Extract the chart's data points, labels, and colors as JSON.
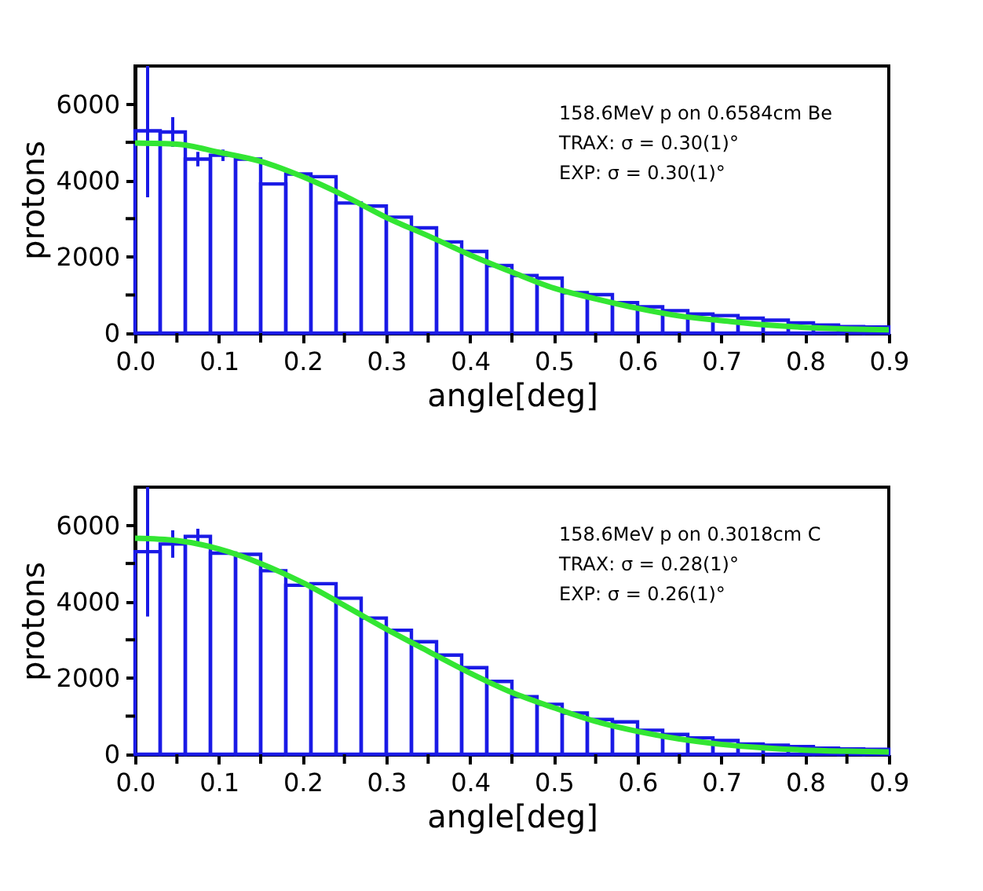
{
  "chart_data": [
    {
      "type": "histogram",
      "xlabel": "angle[deg]",
      "ylabel": "protons",
      "color": "#1a1ae6",
      "bins": [
        0,
        0.03,
        0.06,
        0.09,
        0.12,
        0.15,
        0.18,
        0.21,
        0.24,
        0.27,
        0.3,
        0.33,
        0.36,
        0.39,
        0.42,
        0.45,
        0.48,
        0.51,
        0.54,
        0.57,
        0.6,
        0.63,
        0.66,
        0.69,
        0.72,
        0.75,
        0.78,
        0.81,
        0.84,
        0.87,
        0.9
      ],
      "values": [
        5300,
        5270,
        4560,
        4660,
        4560,
        3910,
        4170,
        4100,
        3410,
        3330,
        3040,
        2760,
        2390,
        2140,
        1770,
        1510,
        1440,
        1060,
        1010,
        800,
        690,
        590,
        500,
        460,
        390,
        340,
        270,
        210,
        170,
        160
      ],
      "errors": [
        [
          3560,
          7000
        ],
        390,
        190,
        150,
        null,
        null,
        null,
        null,
        null,
        null,
        null,
        null,
        null,
        null,
        null,
        null,
        null,
        null,
        null,
        null,
        null,
        null,
        null,
        null,
        null,
        null,
        null,
        null,
        null,
        null
      ],
      "series": [
        {
          "type": "line",
          "color": "#33e633",
          "x": [
            0,
            0.05,
            0.1,
            0.15,
            0.2,
            0.25,
            0.3,
            0.35,
            0.4,
            0.45,
            0.5,
            0.55,
            0.6,
            0.65,
            0.7,
            0.75,
            0.8,
            0.85,
            0.9
          ],
          "values": [
            4980,
            4950,
            4740,
            4500,
            4100,
            3600,
            3030,
            2550,
            2050,
            1600,
            1180,
            900,
            650,
            450,
            330,
            220,
            150,
            110,
            90
          ]
        }
      ],
      "xlim": [
        0,
        0.9
      ],
      "ylim": [
        0,
        7000
      ],
      "xticks": [
        {
          "value": 0,
          "label": "0.0"
        },
        {
          "value": 0.05,
          "label": null
        },
        0.1,
        {
          "value": 0.15,
          "label": null
        },
        0.2,
        {
          "value": 0.25,
          "label": null
        },
        0.3,
        {
          "value": 0.35,
          "label": null
        },
        0.4,
        {
          "value": 0.45,
          "label": null
        },
        0.5,
        {
          "value": 0.55,
          "label": null
        },
        0.6,
        {
          "value": 0.65,
          "label": null
        },
        0.7,
        {
          "value": 0.75,
          "label": null
        },
        0.8,
        {
          "value": 0.85,
          "label": null
        },
        0.9
      ],
      "yticks": [
        0,
        {
          "value": 1000,
          "label": null
        },
        2000,
        {
          "value": 3000,
          "label": null
        },
        4000,
        {
          "value": 5000,
          "label": null
        },
        6000
      ],
      "annotations": [
        "158.6MeV p on 0.6584cm Be",
        "TRAX: σ = 0.30(1)°",
        "EXP: σ = 0.30(1)°"
      ],
      "grid": false
    },
    {
      "type": "histogram",
      "xlabel": "angle[deg]",
      "ylabel": "protons",
      "color": "#1a1ae6",
      "bins": [
        0,
        0.03,
        0.06,
        0.09,
        0.12,
        0.15,
        0.18,
        0.21,
        0.24,
        0.27,
        0.3,
        0.33,
        0.36,
        0.39,
        0.42,
        0.45,
        0.48,
        0.51,
        0.54,
        0.57,
        0.6,
        0.63,
        0.66,
        0.69,
        0.72,
        0.75,
        0.78,
        0.81,
        0.84,
        0.87,
        0.9
      ],
      "values": [
        5310,
        5510,
        5710,
        5270,
        5240,
        4810,
        4430,
        4470,
        4090,
        3570,
        3250,
        2950,
        2600,
        2270,
        1910,
        1510,
        1310,
        1080,
        910,
        850,
        630,
        520,
        430,
        360,
        270,
        240,
        200,
        160,
        140,
        130
      ],
      "errors": [
        [
          3610,
          7000
        ],
        360,
        200,
        null,
        null,
        null,
        null,
        null,
        null,
        null,
        null,
        null,
        null,
        null,
        null,
        null,
        null,
        null,
        null,
        null,
        null,
        null,
        null,
        null,
        null,
        null,
        null,
        null,
        null,
        null
      ],
      "series": [
        {
          "type": "line",
          "color": "#33e633",
          "x": [
            0,
            0.05,
            0.1,
            0.15,
            0.2,
            0.25,
            0.3,
            0.35,
            0.4,
            0.45,
            0.5,
            0.55,
            0.6,
            0.65,
            0.7,
            0.75,
            0.8,
            0.85,
            0.9
          ],
          "values": [
            5660,
            5600,
            5380,
            5000,
            4500,
            3900,
            3280,
            2700,
            2130,
            1620,
            1220,
            860,
            600,
            400,
            260,
            170,
            110,
            80,
            60
          ]
        }
      ],
      "xlim": [
        0,
        0.9
      ],
      "ylim": [
        0,
        7000
      ],
      "xticks": [
        {
          "value": 0,
          "label": "0.0"
        },
        {
          "value": 0.05,
          "label": null
        },
        0.1,
        {
          "value": 0.15,
          "label": null
        },
        0.2,
        {
          "value": 0.25,
          "label": null
        },
        0.3,
        {
          "value": 0.35,
          "label": null
        },
        0.4,
        {
          "value": 0.45,
          "label": null
        },
        0.5,
        {
          "value": 0.55,
          "label": null
        },
        0.6,
        {
          "value": 0.65,
          "label": null
        },
        0.7,
        {
          "value": 0.75,
          "label": null
        },
        0.8,
        {
          "value": 0.85,
          "label": null
        },
        0.9
      ],
      "yticks": [
        0,
        {
          "value": 1000,
          "label": null
        },
        2000,
        {
          "value": 3000,
          "label": null
        },
        4000,
        {
          "value": 5000,
          "label": null
        },
        6000
      ],
      "annotations": [
        "158.6MeV p on 0.3018cm C",
        "TRAX: σ = 0.28(1)°",
        "EXP: σ = 0.26(1)°"
      ],
      "grid": false
    }
  ]
}
